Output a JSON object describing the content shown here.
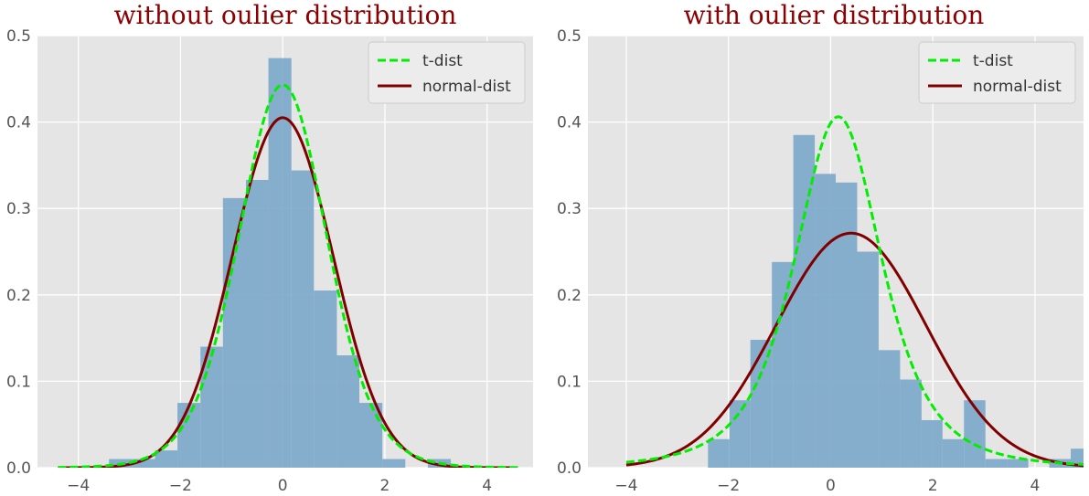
{
  "chart_data": [
    {
      "type": "histogram",
      "title": "without oulier distribution",
      "xlabel": "",
      "ylabel": "",
      "xlim": [
        -4.8,
        4.9
      ],
      "ylim": [
        0,
        0.5
      ],
      "xticks": [
        -4,
        -2,
        0,
        2,
        4
      ],
      "yticks": [
        0.0,
        0.1,
        0.2,
        0.3,
        0.4,
        0.5
      ],
      "grid": true,
      "legend_position": "top-right",
      "histogram": {
        "bin_edges": [
          -3.4,
          -2.95,
          -2.5,
          -2.06,
          -1.61,
          -1.17,
          -0.72,
          -0.28,
          0.17,
          0.61,
          1.06,
          1.5,
          1.95,
          2.4,
          2.84,
          3.29,
          3.73
        ],
        "values": [
          0.01,
          0.01,
          0.02,
          0.075,
          0.14,
          0.312,
          0.333,
          0.474,
          0.344,
          0.205,
          0.13,
          0.075,
          0.01,
          0.0,
          0.01,
          0.0
        ],
        "color": "#7aa6c9"
      },
      "series": [
        {
          "name": "t-dist",
          "style": "dashed",
          "color": "#00ee00",
          "distribution": "t",
          "df": 11,
          "loc": 0.0,
          "scale": 0.88,
          "x_range": [
            -4.4,
            4.6
          ]
        },
        {
          "name": "normal-dist",
          "style": "solid",
          "color": "#800000",
          "distribution": "normal",
          "mean": 0.0,
          "sd": 0.985,
          "x_range": [
            -4.4,
            4.6
          ]
        }
      ]
    },
    {
      "type": "histogram",
      "title": "with oulier distribution",
      "xlabel": "",
      "ylabel": "",
      "xlim": [
        -4.75,
        4.95
      ],
      "ylim": [
        0,
        0.5
      ],
      "xticks": [
        -4,
        -2,
        0,
        2,
        4
      ],
      "yticks": [
        0.0,
        0.1,
        0.2,
        0.3,
        0.4,
        0.5
      ],
      "grid": true,
      "legend_position": "top-right",
      "histogram": {
        "bin_edges": [
          -2.4,
          -1.98,
          -1.57,
          -1.15,
          -0.73,
          -0.31,
          0.1,
          0.52,
          0.94,
          1.36,
          1.78,
          2.19,
          2.61,
          3.03,
          3.45,
          3.87,
          4.28,
          4.7,
          5.12
        ],
        "values": [
          0.033,
          0.078,
          0.148,
          0.238,
          0.385,
          0.34,
          0.33,
          0.25,
          0.136,
          0.102,
          0.055,
          0.033,
          0.078,
          0.01,
          0.01,
          0.0,
          0.01,
          0.022
        ],
        "color": "#7aa6c9"
      },
      "series": [
        {
          "name": "t-dist",
          "style": "dashed",
          "color": "#00ee00",
          "distribution": "t",
          "df": 3,
          "loc": 0.15,
          "scale": 0.905,
          "x_range": [
            -4.0,
            4.95
          ]
        },
        {
          "name": "normal-dist",
          "style": "solid",
          "color": "#800000",
          "distribution": "normal",
          "mean": 0.4,
          "sd": 1.47,
          "x_range": [
            -4.0,
            4.95
          ]
        }
      ]
    }
  ]
}
